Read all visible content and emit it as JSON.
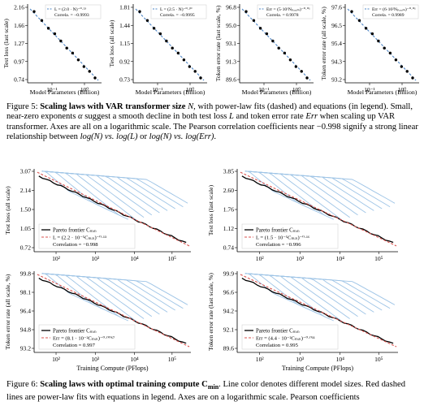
{
  "fig5": {
    "xlabel": "Model Parameters (Billion)",
    "panels": [
      {
        "ylabel": "Test loss (last scale)",
        "yticks": [
          "2.16",
          "1.66",
          "1.27",
          "0.97",
          "0.74"
        ],
        "xticks": [
          "10⁻¹",
          "10⁰"
        ],
        "legend_fit": "L = (2.0 · N)⁻⁰·²³",
        "legend_corr": "Correla. = −0.9993"
      },
      {
        "ylabel": "Test loss (all scale)",
        "yticks": [
          "1.81",
          "1.44",
          "1.15",
          "0.92",
          "0.73"
        ],
        "xticks": [
          "10⁻¹",
          "10⁰"
        ],
        "legend_fit": "L = (2.5 · N)⁻⁰·²⁰",
        "legend_corr": "Correla. = −0.9995"
      },
      {
        "ylabel": "Token error rate (last scale, %)",
        "yticks": [
          "96.8",
          "95.0",
          "93.1",
          "91.3",
          "89.6"
        ],
        "xticks": [
          "10⁻¹",
          "10⁰"
        ],
        "legend_fit": "Err = (5·10¹Nₚₐᵣₐₘ)⁻⁰·⁰¹",
        "legend_corr": "Correla. = 0.9978"
      },
      {
        "ylabel": "Token error rate (all scale, %)",
        "yticks": [
          "97.6",
          "96.5",
          "95.4",
          "94.3",
          "93.2"
        ],
        "xticks": [
          "10⁻¹",
          "10⁰"
        ],
        "legend_fit": "Err = (6·10²Nₚₐᵣₐₘ)⁻⁰·⁰¹",
        "legend_corr": "Correla. = 0.9989"
      }
    ]
  },
  "caption5": {
    "label": "Figure 5:",
    "bold": "Scaling laws with VAR transformer size",
    "bold_sym": "N",
    "rest1": ", with power-law fits (dashed) and equations (in legend). Small, near-zero exponents ",
    "alpha": "α",
    "rest2": " suggest a smooth decline in both test loss ",
    "L": "L",
    "rest3": " and token error rate ",
    "Err": "Err",
    "rest4": " when scaling up VAR transformer. Axes are all on a logarithmic scale. The Pearson correlation coefficients near −0.998 signify a strong linear relationship between ",
    "rel1": "log(N) vs. log(L)",
    "or": " or ",
    "rel2": "log(N) vs. log(Err)",
    "end": "."
  },
  "fig6": {
    "xlabel": "Training Compute (PFlops)",
    "xticks": [
      "10²",
      "10³",
      "10⁴",
      "10⁵"
    ],
    "panels": [
      {
        "ylabel": "Test loss (all scale)",
        "yticks": [
          "3.07",
          "2.14",
          "1.50",
          "1.05",
          "0.72"
        ],
        "legend_frontier": "Pareto frontier Cₘᵢₙ",
        "legend_fit": "L = (2.2 · 10⁻⁵Cₘᵢₙ)⁻⁰·¹³",
        "legend_corr": "Correlation = −0.998"
      },
      {
        "ylabel": "Test loss (last scale)",
        "yticks": [
          "3.85",
          "2.60",
          "1.76",
          "1.12",
          "0.74"
        ],
        "legend_frontier": "Pareto frontier Cₘᵢₙ",
        "legend_fit": "L = (1.5 · 10⁻⁵Cₘᵢₙ)⁻⁰·¹⁶",
        "legend_corr": "Correlation = −0.996"
      },
      {
        "ylabel": "Token error rate (all scale, %)",
        "yticks": [
          "99.8",
          "98.1",
          "96.4",
          "94.8",
          "93.2"
        ],
        "legend_frontier": "Pareto frontier Cₘᵢₙ",
        "legend_fit": "Err = (8.1 · 10⁻²Cₘᵢₙ)⁻⁰·⁰⁰⁶⁷",
        "legend_corr": "Correlation = 0.997"
      },
      {
        "ylabel": "Token error rate (last scale, %)",
        "yticks": [
          "99.9",
          "96.6",
          "94.2",
          "92.1",
          "89.6"
        ],
        "legend_frontier": "Pareto frontier Cₘᵢₙ",
        "legend_fit": "Err = (4.4 · 10⁻²Cₘᵢₙ)⁻⁰·⁰¹¹",
        "legend_corr": "Correlation = 0.995"
      }
    ]
  },
  "caption6": {
    "label": "Figure 6:",
    "bold": "Scaling laws with optimal training compute C",
    "bold_sub": "min",
    "rest": ". Line color denotes different model sizes. Red dashed lines are power-law fits with equations in legend. Axes are on a logarithmic scale. Pearson coefficients"
  },
  "colors": {
    "fit_blue": "#4f87c7",
    "frontier": "#000000",
    "fit_red": "#d9534f",
    "curves": "#9ec4e6"
  }
}
